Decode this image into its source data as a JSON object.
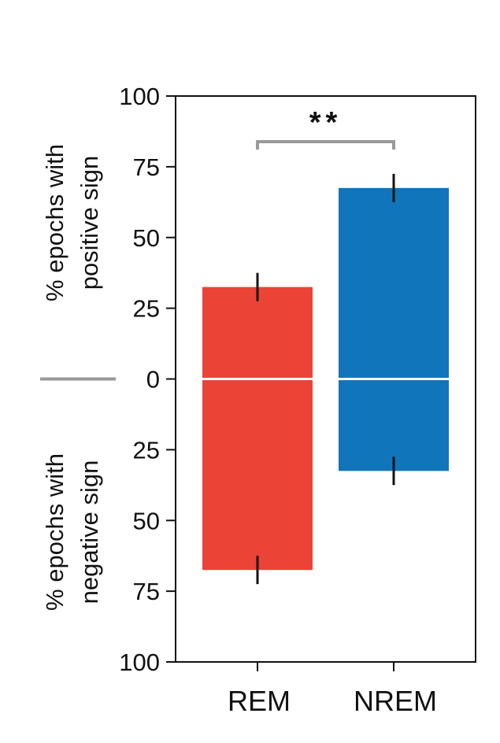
{
  "chart_data": {
    "type": "bar",
    "title": "",
    "categories": [
      "REM",
      "NREM"
    ],
    "series": [
      {
        "name": "positive sign",
        "values": [
          32.5,
          67.5
        ],
        "error": [
          5,
          5
        ]
      },
      {
        "name": "negative sign",
        "values": [
          67.5,
          32.5
        ],
        "error": [
          5,
          5
        ]
      }
    ],
    "colors": {
      "REM": "#ec4337",
      "NREM": "#1175bb",
      "zero_line": "#ffffff",
      "axis": "#111111",
      "bracket": "#999999"
    },
    "yticks_upper": [
      "100",
      "75",
      "50",
      "25",
      "0"
    ],
    "yticks_lower": [
      "25",
      "50",
      "75",
      "100"
    ],
    "ylim": [
      -100,
      100
    ],
    "ylabel_upper": [
      "% epochs with",
      "positive sign"
    ],
    "ylabel_lower": [
      "% epochs with",
      "negative sign"
    ],
    "significance": {
      "label": "**",
      "between": [
        "REM",
        "NREM"
      ]
    },
    "xlabel": ""
  }
}
